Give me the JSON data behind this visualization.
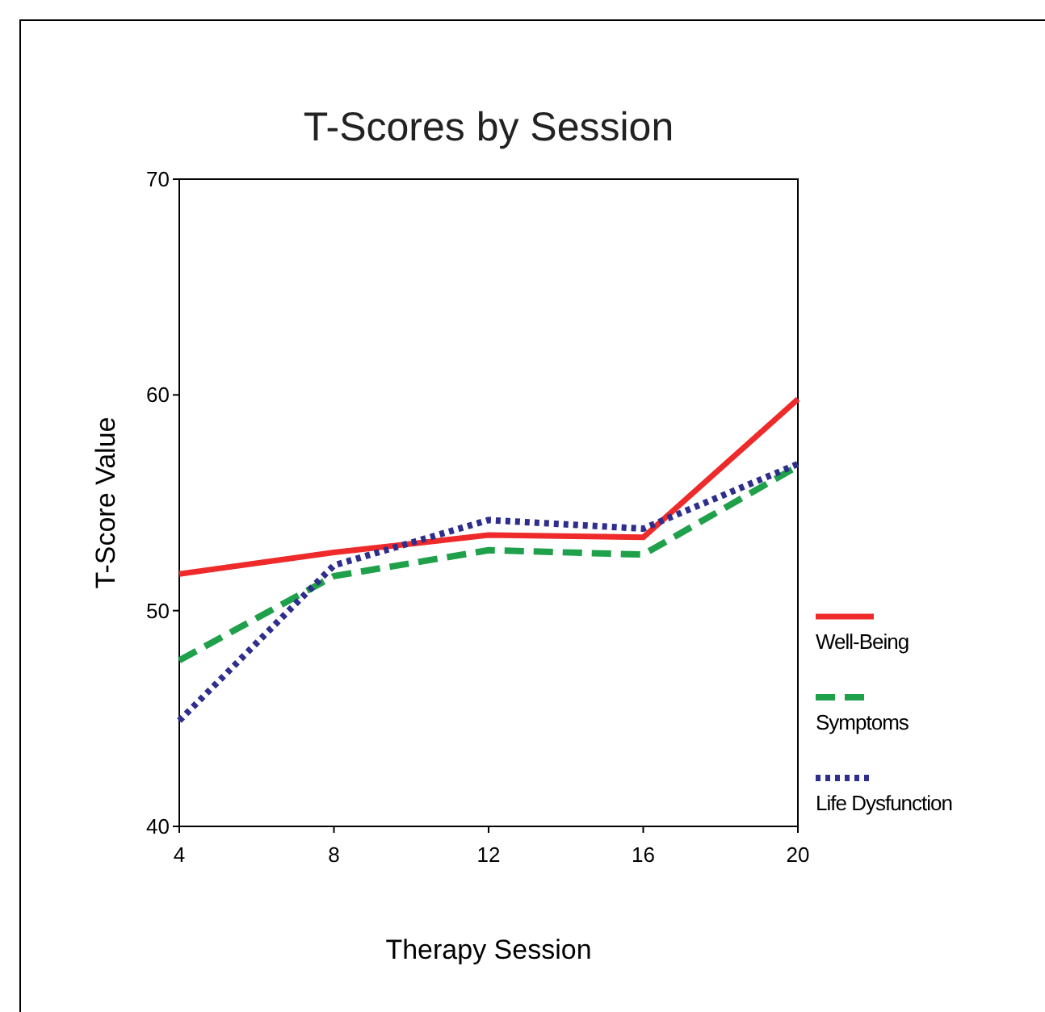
{
  "chart_data": {
    "type": "line",
    "title": "T-Scores by Session",
    "xlabel": "Therapy Session",
    "ylabel": "T-Score Value",
    "x": [
      4,
      8,
      12,
      16,
      20
    ],
    "series": [
      {
        "name": "Well-Being",
        "color": "#ee2a2a",
        "line_style": "solid",
        "values": [
          51.7,
          52.7,
          53.5,
          53.4,
          59.8
        ]
      },
      {
        "name": "Symptoms",
        "color": "#1fa04a",
        "line_style": "dashed",
        "values": [
          47.7,
          51.6,
          52.8,
          52.6,
          56.7
        ]
      },
      {
        "name": "Life Dysfunction",
        "color": "#2e2e8c",
        "line_style": "dotted",
        "values": [
          44.9,
          52.1,
          54.2,
          53.8,
          56.8
        ]
      }
    ],
    "xlim": [
      4,
      20
    ],
    "xticks": [
      4,
      8,
      12,
      16,
      20
    ],
    "ylim": [
      40,
      70
    ],
    "yticks": [
      40,
      50,
      60,
      70
    ],
    "grid": false,
    "legend": "right",
    "marker": "none"
  }
}
